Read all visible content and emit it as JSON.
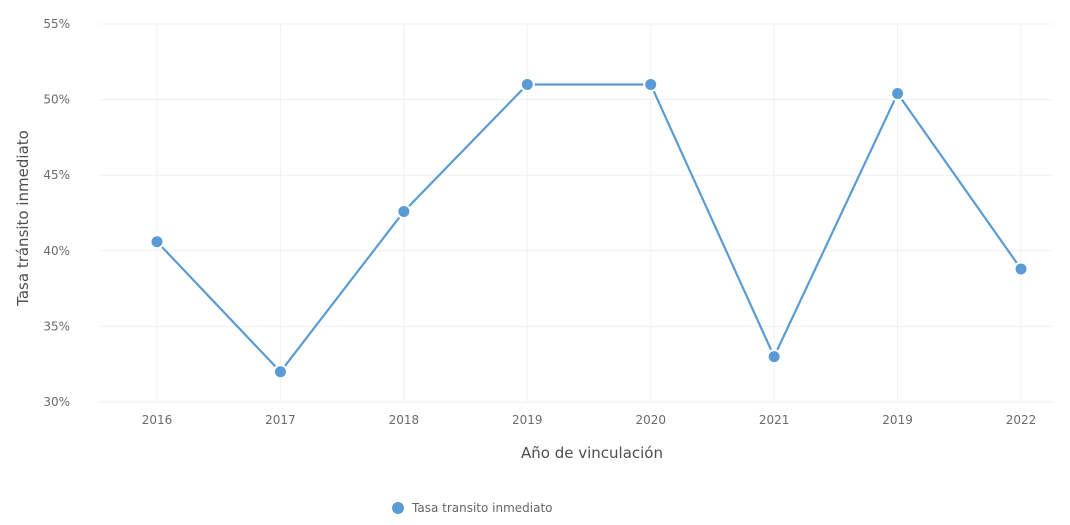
{
  "chart_data": {
    "type": "line",
    "xlabel": "Año de vinculación",
    "ylabel": "Tasa tránsito inmediato",
    "ylim": [
      30,
      55
    ],
    "y_ticks": [
      "30%",
      "35%",
      "40%",
      "45%",
      "50%",
      "55%"
    ],
    "y_tick_values": [
      30,
      35,
      40,
      45,
      50,
      55
    ],
    "categories": [
      "2016",
      "2017",
      "2018",
      "2019",
      "2020",
      "2021",
      "2019",
      "2022"
    ],
    "series": [
      {
        "name": "Tasa transito inmediato",
        "values": [
          40.6,
          32.0,
          42.6,
          51.0,
          51.0,
          33.0,
          50.4,
          38.8
        ],
        "color": "#5b9bd5"
      }
    ],
    "grid": true,
    "legend_position": "bottom"
  }
}
